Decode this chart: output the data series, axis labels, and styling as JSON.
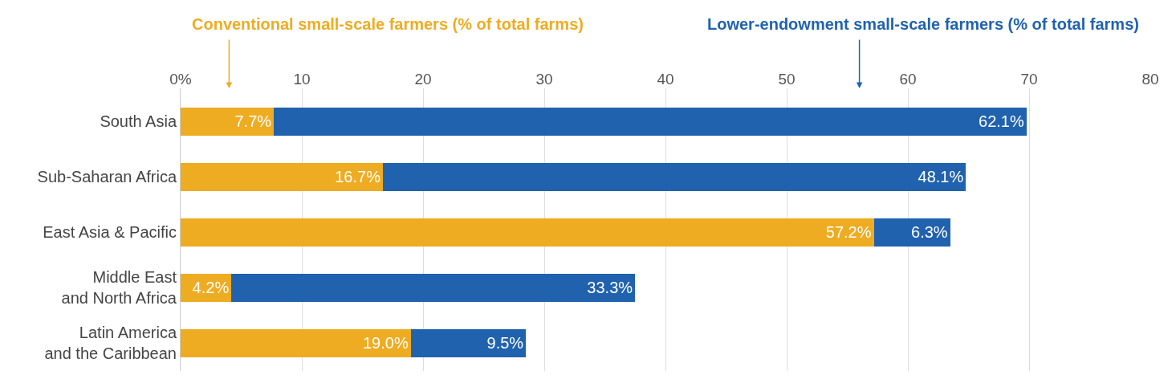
{
  "chart_data": {
    "type": "bar",
    "orientation": "horizontal",
    "stacked": true,
    "categories": [
      "South Asia",
      "Sub-Saharan Africa",
      "East Asia & Pacific",
      "Middle East\nand North Africa",
      "Latin America\nand the Caribbean"
    ],
    "series": [
      {
        "name": "Conventional small-scale farmers (% of total farms)",
        "color": "#eeac22",
        "values": [
          7.7,
          16.7,
          57.2,
          4.2,
          19.0
        ],
        "value_labels": [
          "7.7%",
          "16.7%",
          "57.2%",
          "4.2%",
          "19.0%"
        ]
      },
      {
        "name": "Lower-endowment small-scale farmers (% of total farms)",
        "color": "#2062ae",
        "values": [
          62.1,
          48.1,
          6.3,
          33.3,
          9.5
        ],
        "value_labels": [
          "62.1%",
          "48.1%",
          "6.3%",
          "33.3%",
          "9.5%"
        ]
      }
    ],
    "xlim": [
      0,
      80
    ],
    "xticks": [
      {
        "value": 0,
        "label": "0%"
      },
      10,
      20,
      30,
      40,
      50,
      60,
      70,
      80
    ],
    "grid": "x",
    "legend": false
  }
}
